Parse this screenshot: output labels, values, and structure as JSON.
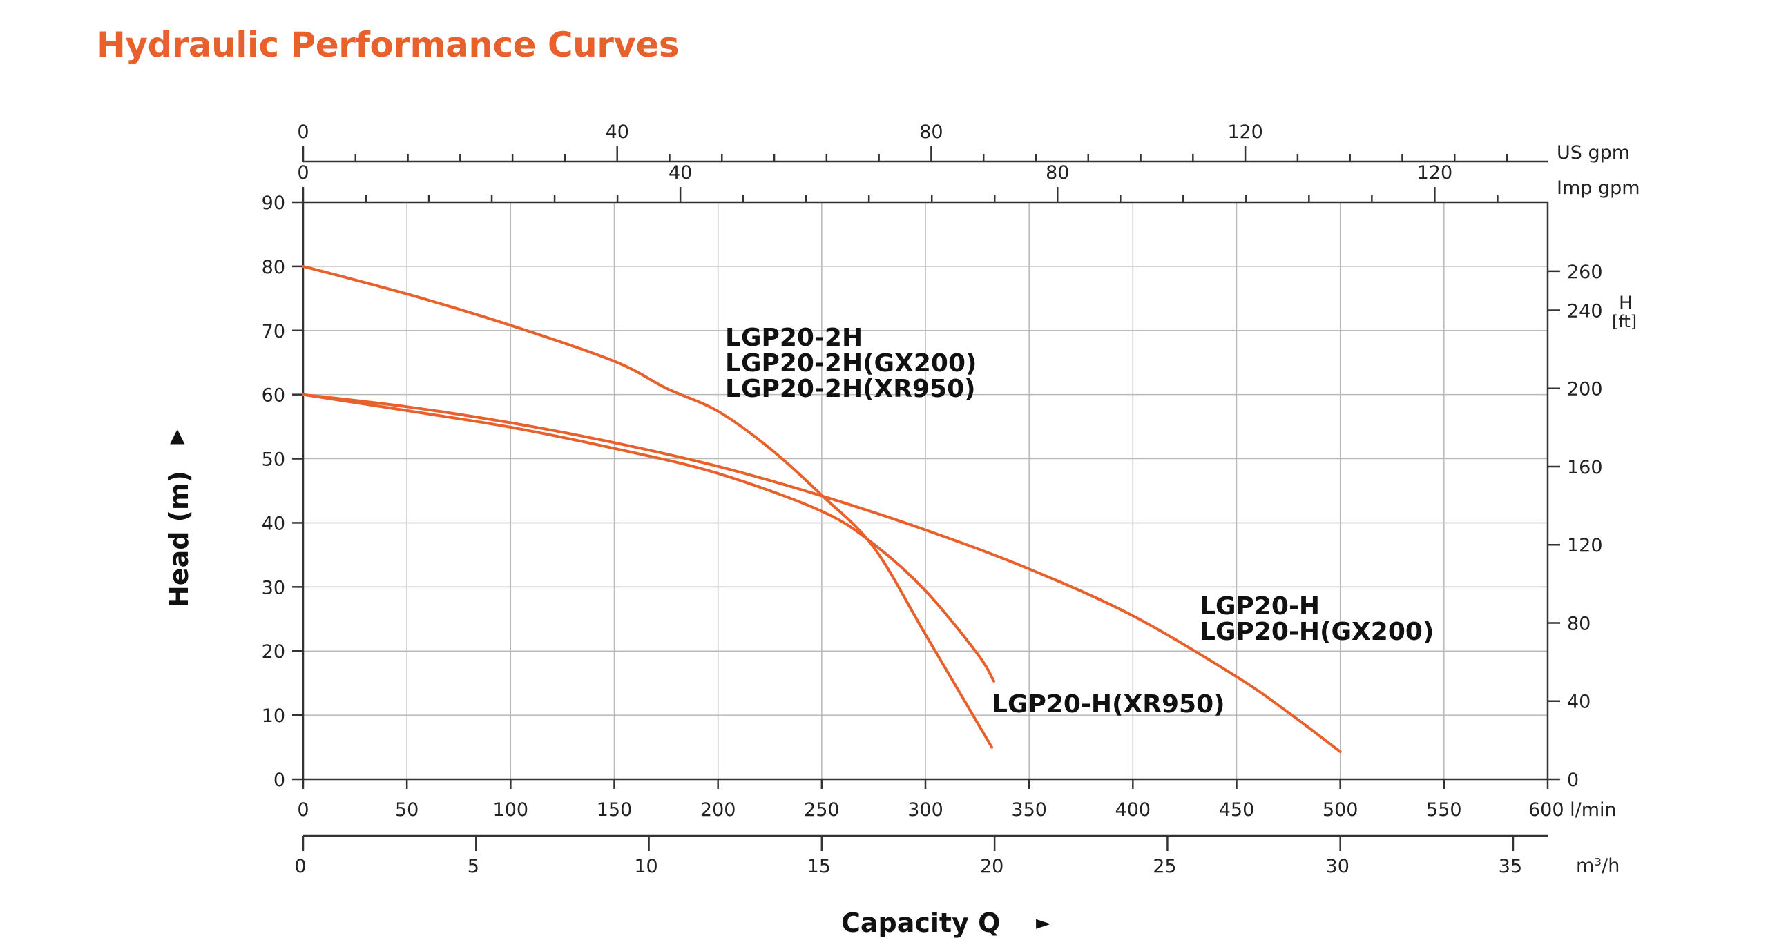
{
  "title": "Hydraulic Performance Curves",
  "colors": {
    "accent": "#E8612C",
    "curve": "#E8612C",
    "text": "#111111"
  },
  "chart_data": {
    "type": "line",
    "title": "Hydraulic Performance Curves",
    "xlabel": "Capacity Q",
    "xlabel_arrow": "►",
    "ylabel": "Head (m)",
    "ylabel_arrow": "▲",
    "xlim": [
      0,
      600
    ],
    "ylim": [
      0,
      90
    ],
    "grid": true,
    "x_unit": "l/min",
    "y_unit": "m",
    "x_ticks": [
      0,
      50,
      100,
      150,
      200,
      250,
      300,
      350,
      400,
      450,
      500,
      550,
      600
    ],
    "x_tick_labels": [
      "0",
      "50",
      "100",
      "150",
      "200",
      "250",
      "300",
      "350",
      "400",
      "450",
      "500",
      "550",
      "600 l/min"
    ],
    "y_ticks": [
      0,
      10,
      20,
      30,
      40,
      50,
      60,
      70,
      80,
      90
    ],
    "y_tick_labels": [
      "0",
      "10",
      "20",
      "30",
      "40",
      "50",
      "60",
      "70",
      "80",
      "90"
    ],
    "secondary_axes": {
      "us_gpm": {
        "label": "US gpm",
        "ticks": [
          0,
          40,
          80,
          120
        ],
        "tick_labels": [
          "0",
          "40",
          "80",
          "120"
        ],
        "lpm_per_unit": 3.785,
        "minor_per_major": 6
      },
      "imp_gpm": {
        "label": "Imp gpm",
        "ticks": [
          0,
          40,
          80,
          120
        ],
        "tick_labels": [
          "0",
          "40",
          "80",
          "120"
        ],
        "lpm_per_unit": 4.546,
        "minor_per_major": 6
      },
      "m3h": {
        "label": "m³/h",
        "ticks": [
          0,
          5,
          10,
          15,
          20,
          25,
          30,
          35
        ],
        "tick_labels": [
          "0",
          "5",
          "10",
          "15",
          "20",
          "25",
          "30",
          "35"
        ],
        "lpm_per_unit": 16.667
      },
      "head_ft": {
        "label_main": "H",
        "label_unit": "[ft]",
        "ticks": [
          0,
          40,
          80,
          120,
          160,
          200,
          240,
          260
        ],
        "tick_labels": [
          "0",
          "40",
          "80",
          "120",
          "160",
          "200",
          "240",
          "260"
        ],
        "m_per_unit": 0.3048
      }
    },
    "series": [
      {
        "name": "LGP20-2H / LGP20-2H(GX200) / LGP20-2H(XR950)",
        "labels": [
          "LGP20-2H",
          "LGP20-2H(GX200)",
          "LGP20-2H(XR950)"
        ],
        "x": [
          0,
          50,
          100,
          150,
          175,
          200,
          225,
          250,
          275,
          300,
          332
        ],
        "y": [
          80,
          75.7,
          70.8,
          65.2,
          61.0,
          57.4,
          51.6,
          44.3,
          36.2,
          22.6,
          5.0
        ]
      },
      {
        "name": "LGP20-H / LGP20-H(GX200)",
        "labels": [
          "LGP20-H",
          "LGP20-H(GX200)"
        ],
        "x": [
          0,
          50,
          100,
          150,
          200,
          250,
          300,
          350,
          400,
          450,
          475,
          500
        ],
        "y": [
          60,
          58.1,
          55.6,
          52.5,
          48.8,
          44.2,
          38.9,
          32.8,
          25.5,
          16.0,
          10.4,
          4.3
        ]
      },
      {
        "name": "LGP20-H(XR950)",
        "labels": [
          "LGP20-H(XR950)"
        ],
        "x": [
          0,
          50,
          100,
          150,
          200,
          250,
          275,
          300,
          325,
          333
        ],
        "y": [
          60,
          57.5,
          54.9,
          51.6,
          47.7,
          41.8,
          36.7,
          29.4,
          19.6,
          15.3
        ]
      }
    ]
  }
}
